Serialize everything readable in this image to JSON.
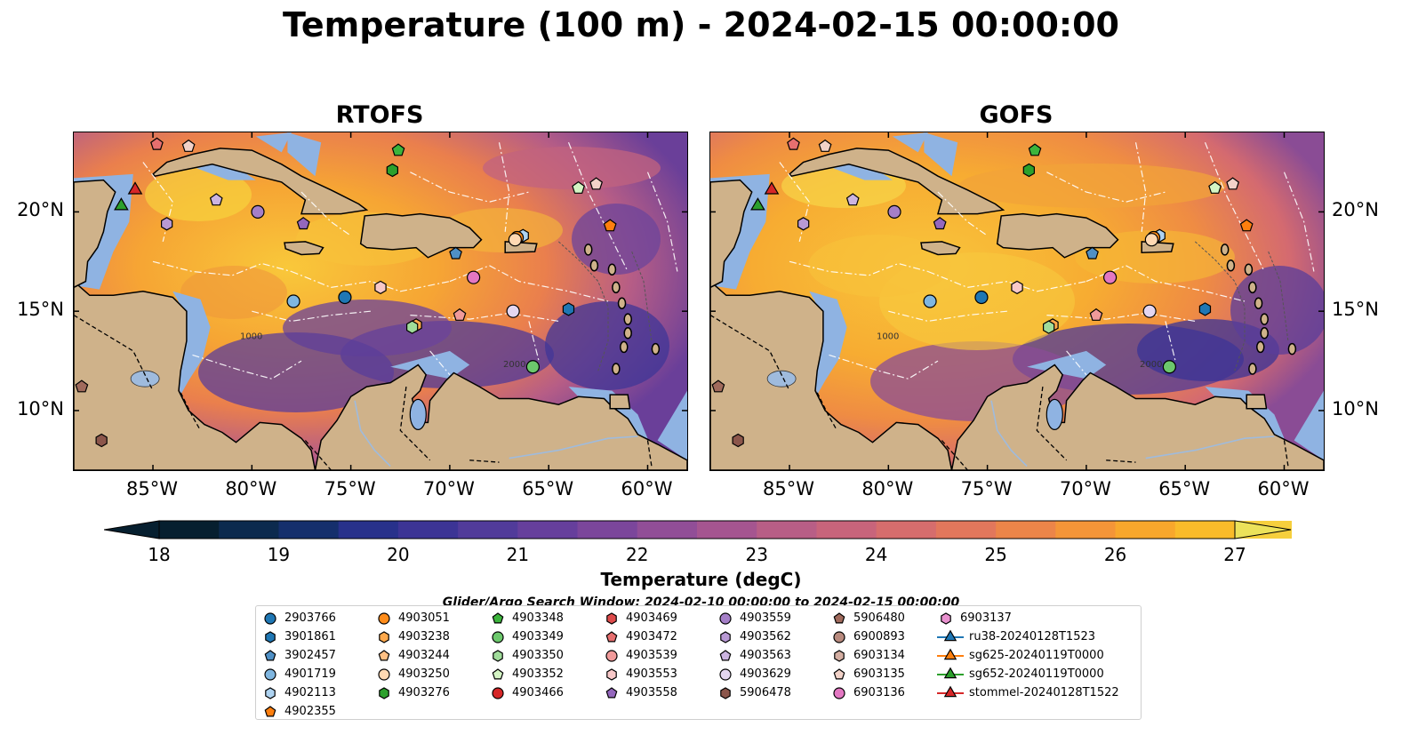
{
  "title": "Temperature (100 m) - 2024-02-15 00:00:00",
  "panels": [
    {
      "title": "RTOFS"
    },
    {
      "title": "GOFS"
    }
  ],
  "axes": {
    "lon_ticks": [
      "85°W",
      "80°W",
      "75°W",
      "70°W",
      "65°W",
      "60°W"
    ],
    "lat_ticks": [
      "20°N",
      "15°N",
      "10°N"
    ]
  },
  "contour_labels": [
    "1000",
    "2000"
  ],
  "colorbar": {
    "label": "Temperature (degC)",
    "ticks": [
      "18",
      "19",
      "20",
      "21",
      "22",
      "23",
      "24",
      "25",
      "26",
      "27"
    ],
    "range": [
      18,
      27
    ],
    "colors": [
      "#061f2f",
      "#0c2a4e",
      "#152f6c",
      "#28318b",
      "#3c3495",
      "#513b9a",
      "#663f9c",
      "#7b469b",
      "#914e97",
      "#a55590",
      "#b85e86",
      "#c8647b",
      "#d66d6d",
      "#e2775c",
      "#ec8549",
      "#f49538",
      "#f8a72c",
      "#f9bb2a",
      "#f6cf3d",
      "#ece25a"
    ]
  },
  "search_window": "Glider/Argo Search Window: 2024-02-10 00:00:00 to 2024-02-15 00:00:00",
  "legend": {
    "columns": [
      [
        {
          "label": "2903766",
          "marker": "circle",
          "color": "#1f77b4"
        },
        {
          "label": "3901861",
          "marker": "hexagon",
          "color": "#1f77b4"
        },
        {
          "label": "3902457",
          "marker": "pentagon",
          "color": "#4f90c6"
        },
        {
          "label": "4901719",
          "marker": "circle",
          "color": "#7fb6e0"
        },
        {
          "label": "4902113",
          "marker": "hexagon",
          "color": "#aed3f1"
        },
        {
          "label": "4902355",
          "marker": "pentagon",
          "color": "#ff7f0e"
        }
      ],
      [
        {
          "label": "4903051",
          "marker": "circle",
          "color": "#ff8c1a"
        },
        {
          "label": "4903238",
          "marker": "hexagon",
          "color": "#ffa94d"
        },
        {
          "label": "4903244",
          "marker": "pentagon",
          "color": "#ffc084"
        },
        {
          "label": "4903250",
          "marker": "circle",
          "color": "#ffd9b3"
        },
        {
          "label": "4903276",
          "marker": "hexagon",
          "color": "#2ca02c"
        }
      ],
      [
        {
          "label": "4903348",
          "marker": "pentagon",
          "color": "#3cb43c"
        },
        {
          "label": "4903349",
          "marker": "circle",
          "color": "#6cc86c"
        },
        {
          "label": "4903350",
          "marker": "hexagon",
          "color": "#a0dc9a"
        },
        {
          "label": "4903352",
          "marker": "pentagon",
          "color": "#d4f5c4"
        },
        {
          "label": "4903466",
          "marker": "circle",
          "color": "#d62728"
        }
      ],
      [
        {
          "label": "4903469",
          "marker": "hexagon",
          "color": "#de4b4b"
        },
        {
          "label": "4903472",
          "marker": "pentagon",
          "color": "#e76f6f"
        },
        {
          "label": "4903539",
          "marker": "circle",
          "color": "#f09a9a"
        },
        {
          "label": "4903553",
          "marker": "hexagon",
          "color": "#f8c8c8"
        },
        {
          "label": "4903558",
          "marker": "pentagon",
          "color": "#9467bd"
        }
      ],
      [
        {
          "label": "4903559",
          "marker": "circle",
          "color": "#a57fc8"
        },
        {
          "label": "4903562",
          "marker": "hexagon",
          "color": "#b899d4"
        },
        {
          "label": "4903563",
          "marker": "pentagon",
          "color": "#ccb4e0"
        },
        {
          "label": "4903629",
          "marker": "circle",
          "color": "#e4d6f0"
        },
        {
          "label": "5906478",
          "marker": "hexagon",
          "color": "#8c564b"
        }
      ],
      [
        {
          "label": "5906480",
          "marker": "pentagon",
          "color": "#a06a5c"
        },
        {
          "label": "6900893",
          "marker": "circle",
          "color": "#b88a7e"
        },
        {
          "label": "6903134",
          "marker": "hexagon",
          "color": "#d4aea2"
        },
        {
          "label": "6903135",
          "marker": "pentagon",
          "color": "#f2d2c8"
        },
        {
          "label": "6903136",
          "marker": "circle",
          "color": "#e377c2"
        }
      ],
      [
        {
          "label": "6903137",
          "marker": "hexagon",
          "color": "#e991cf"
        },
        {
          "label": "ru38-20240128T1523",
          "marker": "triangle-line",
          "color": "#1f77b4"
        },
        {
          "label": "sg625-20240119T0000",
          "marker": "triangle-line",
          "color": "#ff7f0e"
        },
        {
          "label": "sg652-20240119T0000",
          "marker": "triangle-line",
          "color": "#2ca02c"
        },
        {
          "label": "stommel-20240128T1522",
          "marker": "triangle-line",
          "color": "#d62728"
        }
      ]
    ]
  }
}
